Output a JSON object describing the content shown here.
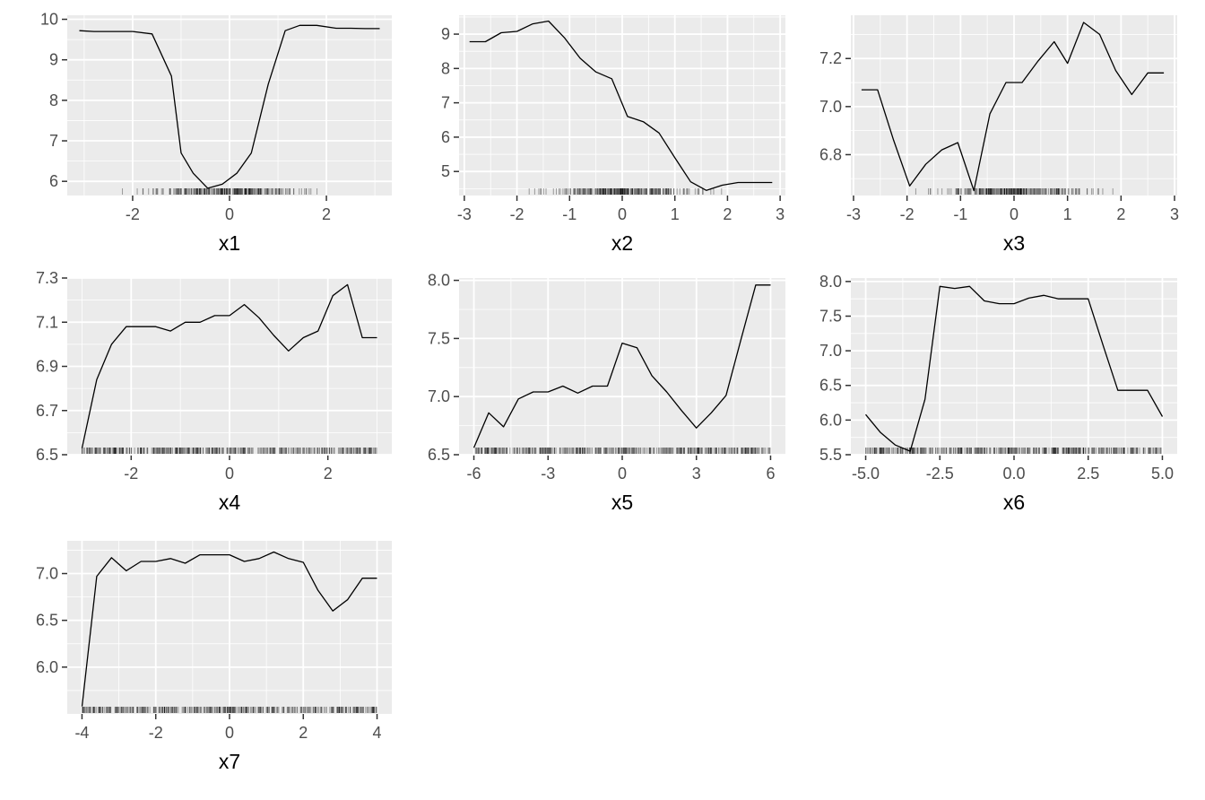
{
  "chart_data": [
    {
      "type": "line",
      "xlabel": "x1",
      "xlim": [
        -3.35,
        3.35
      ],
      "ylim": [
        5.65,
        10.1
      ],
      "xticks": [
        -2,
        0,
        2
      ],
      "xtick_labels": [
        "-2",
        "0",
        "2"
      ],
      "yticks": [
        6,
        7,
        8,
        9,
        10
      ],
      "ytick_labels": [
        "6",
        "7",
        "8",
        "9",
        "10"
      ],
      "x": [
        -3.1,
        -2.8,
        -2.4,
        -2.0,
        -1.6,
        -1.2,
        -1.0,
        -0.75,
        -0.45,
        -0.15,
        0.15,
        0.45,
        0.8,
        1.15,
        1.45,
        1.8,
        2.2,
        2.5,
        2.8,
        3.1
      ],
      "y": [
        9.72,
        9.7,
        9.7,
        9.7,
        9.64,
        8.6,
        6.7,
        6.2,
        5.83,
        5.93,
        6.2,
        6.7,
        8.4,
        9.72,
        9.85,
        9.85,
        9.78,
        9.78,
        9.77,
        9.77
      ]
    },
    {
      "type": "line",
      "xlabel": "x2",
      "xlim": [
        -3.1,
        3.1
      ],
      "ylim": [
        4.3,
        9.55
      ],
      "xticks": [
        -3,
        -2,
        -1,
        0,
        1,
        2,
        3
      ],
      "xtick_labels": [
        "-3",
        "-2",
        "-1",
        "0",
        "1",
        "2",
        "3"
      ],
      "yticks": [
        5,
        6,
        7,
        8,
        9
      ],
      "ytick_labels": [
        "5",
        "6",
        "7",
        "8",
        "9"
      ],
      "x": [
        -2.9,
        -2.6,
        -2.3,
        -2.0,
        -1.7,
        -1.4,
        -1.1,
        -0.8,
        -0.5,
        -0.2,
        0.1,
        0.4,
        0.7,
        1.0,
        1.3,
        1.6,
        1.9,
        2.2,
        2.5,
        2.85
      ],
      "y": [
        8.78,
        8.78,
        9.04,
        9.08,
        9.3,
        9.38,
        8.9,
        8.3,
        7.9,
        7.7,
        6.6,
        6.45,
        6.12,
        5.4,
        4.7,
        4.45,
        4.6,
        4.68,
        4.68,
        4.68
      ]
    },
    {
      "type": "line",
      "xlabel": "x3",
      "xlim": [
        -3.05,
        3.05
      ],
      "ylim": [
        6.63,
        7.38
      ],
      "xticks": [
        -3,
        -2,
        -1,
        0,
        1,
        2,
        3
      ],
      "xtick_labels": [
        "-3",
        "-2",
        "-1",
        "0",
        "1",
        "2",
        "3"
      ],
      "yticks": [
        6.8,
        7.0,
        7.2
      ],
      "ytick_labels": [
        "6.8",
        "7.0",
        "7.2"
      ],
      "x": [
        -2.85,
        -2.55,
        -2.25,
        -1.95,
        -1.65,
        -1.35,
        -1.05,
        -0.75,
        -0.45,
        -0.15,
        0.15,
        0.45,
        0.75,
        1.0,
        1.3,
        1.6,
        1.9,
        2.2,
        2.5,
        2.8
      ],
      "y": [
        7.07,
        7.07,
        6.86,
        6.67,
        6.76,
        6.82,
        6.85,
        6.65,
        6.97,
        7.1,
        7.1,
        7.19,
        7.27,
        7.18,
        7.35,
        7.3,
        7.15,
        7.05,
        7.14,
        7.14
      ]
    },
    {
      "type": "line",
      "xlabel": "x4",
      "xlim": [
        -3.3,
        3.3
      ],
      "ylim": [
        6.5,
        7.3
      ],
      "xticks": [
        -2,
        0,
        2
      ],
      "xtick_labels": [
        "-2",
        "0",
        "2"
      ],
      "yticks": [
        6.5,
        6.7,
        6.9,
        7.1,
        7.3
      ],
      "ytick_labels": [
        "6.5",
        "6.7",
        "6.9",
        "7.1",
        "7.3"
      ],
      "x": [
        -3.0,
        -2.7,
        -2.4,
        -2.1,
        -1.8,
        -1.5,
        -1.2,
        -0.9,
        -0.6,
        -0.3,
        0.0,
        0.3,
        0.6,
        0.9,
        1.2,
        1.5,
        1.8,
        2.1,
        2.4,
        2.7,
        3.0
      ],
      "y": [
        6.53,
        6.84,
        7.0,
        7.08,
        7.08,
        7.08,
        7.06,
        7.1,
        7.1,
        7.13,
        7.13,
        7.18,
        7.12,
        7.04,
        6.97,
        7.03,
        7.06,
        7.22,
        7.27,
        7.03,
        7.03
      ]
    },
    {
      "type": "line",
      "xlabel": "x5",
      "xlim": [
        -6.6,
        6.6
      ],
      "ylim": [
        6.5,
        8.02
      ],
      "xticks": [
        -6,
        -3,
        0,
        3,
        6
      ],
      "xtick_labels": [
        "-6",
        "-3",
        "0",
        "3",
        "6"
      ],
      "yticks": [
        6.5,
        7.0,
        7.5,
        8.0
      ],
      "ytick_labels": [
        "6.5",
        "7.0",
        "7.5",
        "8.0"
      ],
      "x": [
        -6.0,
        -5.4,
        -4.8,
        -4.2,
        -3.6,
        -3.0,
        -2.4,
        -1.8,
        -1.2,
        -0.6,
        0.0,
        0.6,
        1.2,
        1.8,
        2.4,
        3.0,
        3.6,
        4.2,
        4.8,
        5.4,
        6.0
      ],
      "y": [
        6.56,
        6.86,
        6.74,
        6.98,
        7.04,
        7.04,
        7.09,
        7.03,
        7.09,
        7.09,
        7.46,
        7.42,
        7.18,
        7.04,
        6.88,
        6.73,
        6.86,
        7.01,
        7.49,
        7.96,
        7.96
      ]
    },
    {
      "type": "line",
      "xlabel": "x6",
      "xlim": [
        -5.5,
        5.5
      ],
      "ylim": [
        5.5,
        8.05
      ],
      "xticks": [
        -5,
        -2.5,
        0,
        2.5,
        5
      ],
      "xtick_labels": [
        "-5.0",
        "-2.5",
        "0.0",
        "2.5",
        "5.0"
      ],
      "yticks": [
        5.5,
        6.0,
        6.5,
        7.0,
        7.5,
        8.0
      ],
      "ytick_labels": [
        "5.5",
        "6.0",
        "6.5",
        "7.0",
        "7.5",
        "8.0"
      ],
      "x": [
        -5.0,
        -4.5,
        -4.0,
        -3.5,
        -3.0,
        -2.5,
        -2.0,
        -1.5,
        -1.0,
        -0.5,
        0.0,
        0.5,
        1.0,
        1.5,
        2.0,
        2.5,
        3.0,
        3.5,
        4.0,
        4.5,
        5.0
      ],
      "y": [
        6.08,
        5.82,
        5.64,
        5.55,
        6.3,
        7.93,
        7.9,
        7.93,
        7.72,
        7.68,
        7.68,
        7.76,
        7.8,
        7.75,
        7.75,
        7.75,
        7.08,
        6.43,
        6.43,
        6.43,
        6.05
      ]
    },
    {
      "type": "line",
      "xlabel": "x7",
      "xlim": [
        -4.4,
        4.4
      ],
      "ylim": [
        5.5,
        7.35
      ],
      "xticks": [
        -4,
        -2,
        0,
        2,
        4
      ],
      "xtick_labels": [
        "-4",
        "-2",
        "0",
        "2",
        "4"
      ],
      "yticks": [
        6.0,
        6.5,
        7.0
      ],
      "ytick_labels": [
        "6.0",
        "6.5",
        "7.0"
      ],
      "x": [
        -4.0,
        -3.6,
        -3.2,
        -2.8,
        -2.4,
        -2.0,
        -1.6,
        -1.2,
        -0.8,
        -0.4,
        0.0,
        0.4,
        0.8,
        1.2,
        1.6,
        2.0,
        2.4,
        2.8,
        3.2,
        3.6,
        4.0
      ],
      "y": [
        5.58,
        6.97,
        7.17,
        7.03,
        7.13,
        7.13,
        7.16,
        7.11,
        7.2,
        7.2,
        7.2,
        7.13,
        7.16,
        7.23,
        7.16,
        7.12,
        6.82,
        6.6,
        6.72,
        6.95,
        6.95
      ]
    }
  ]
}
